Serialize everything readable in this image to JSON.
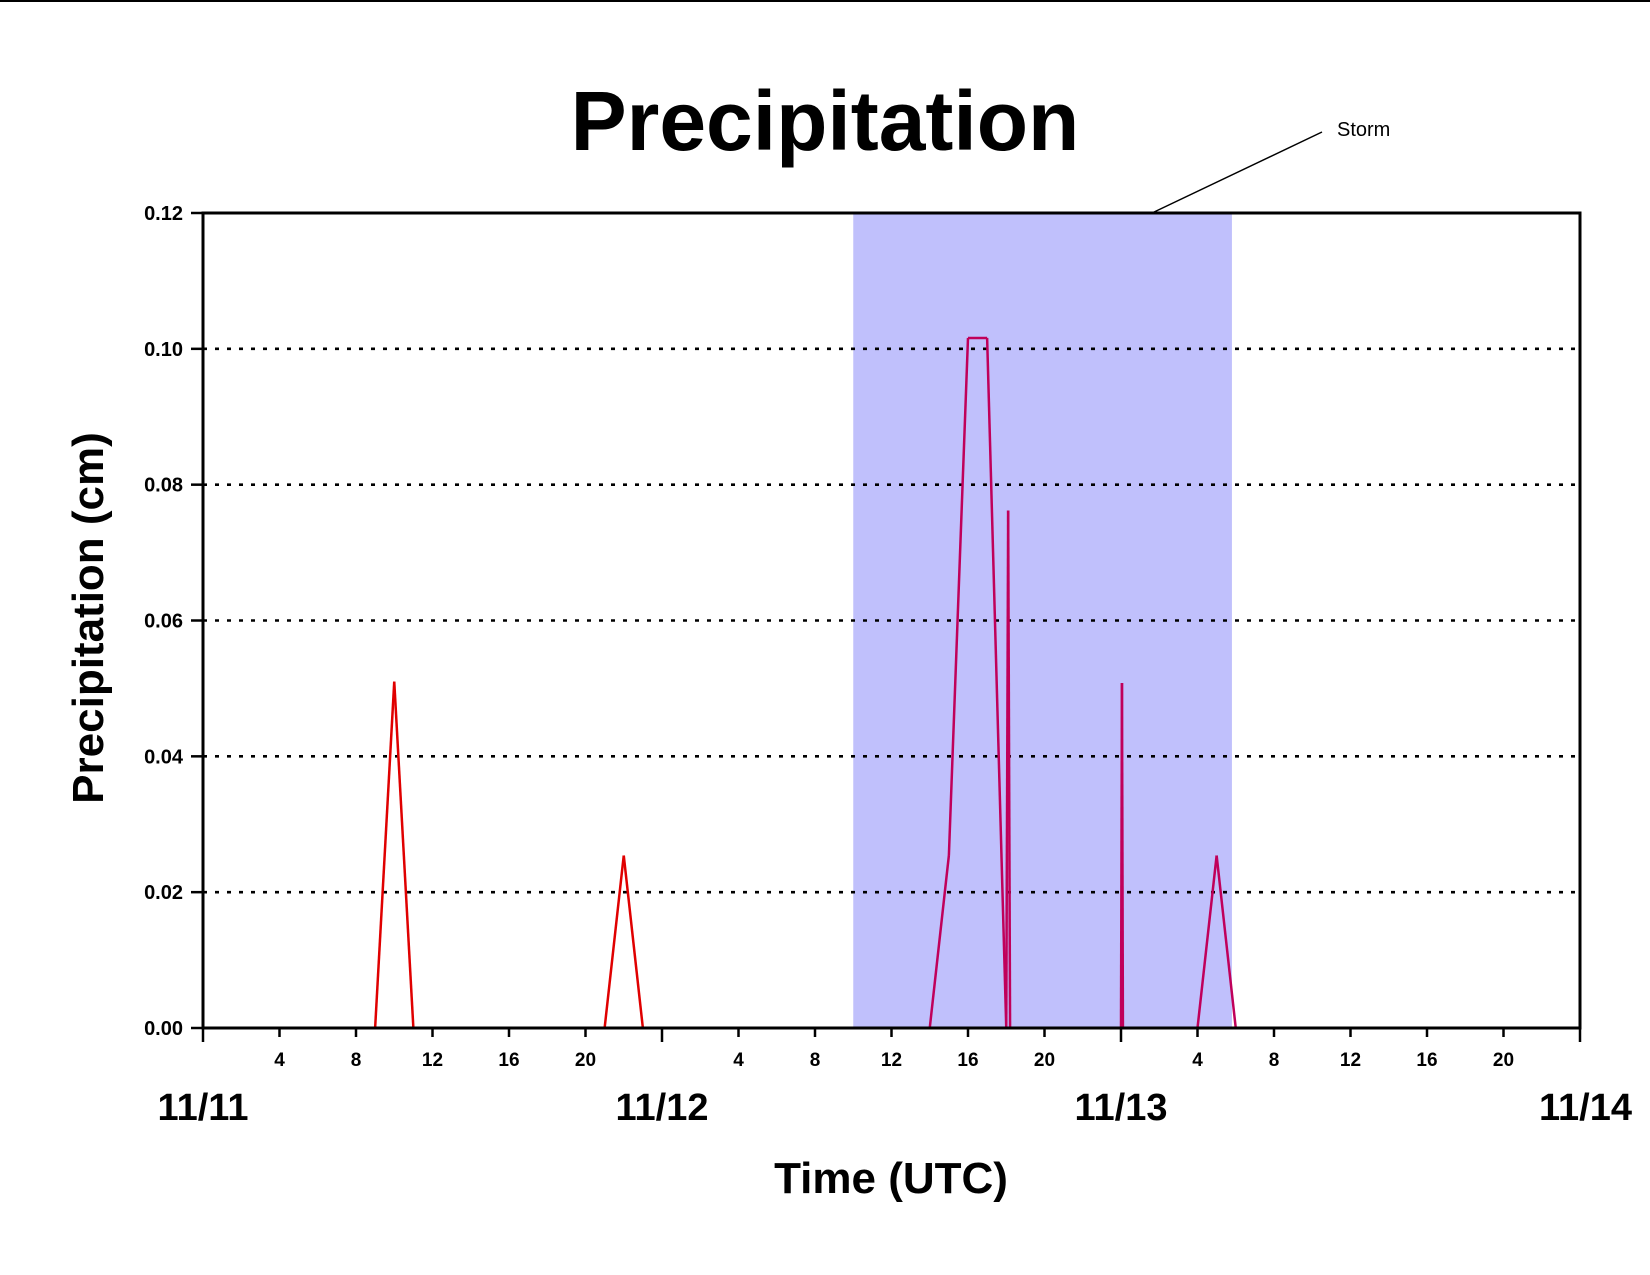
{
  "chart_data": {
    "type": "line",
    "title": "Precipitation",
    "xlabel": "Time (UTC)",
    "ylabel": "Precipitation (cm)",
    "ylim": [
      0,
      0.12
    ],
    "yticks": [
      "0.00",
      "0.02",
      "0.04",
      "0.06",
      "0.08",
      "0.10",
      "0.12"
    ],
    "xlim_hours": [
      0,
      72
    ],
    "date_labels": [
      {
        "label": "11/11",
        "hour": 0
      },
      {
        "label": "11/12",
        "hour": 24
      },
      {
        "label": "11/13",
        "hour": 48
      },
      {
        "label": "11/14",
        "hour": 72
      }
    ],
    "hour_tick_labels": [
      "4",
      "8",
      "12",
      "16",
      "20"
    ],
    "grid": "horizontal-dotted",
    "line_color": "#e00000",
    "storm_line_color": "#c0005a",
    "shade_color": "#c0c0fc",
    "storm": {
      "label": "Storm",
      "start_hour": 34,
      "end_hour": 53.8
    },
    "series": [
      {
        "x": [
          0,
          9,
          10,
          11,
          21,
          22,
          23,
          38,
          39,
          40,
          41,
          42,
          42.1,
          42.2,
          42.3,
          48,
          48.05,
          48.1,
          52,
          53,
          54,
          72
        ],
        "y": [
          0,
          0,
          0.051,
          0,
          0,
          0.0254,
          0,
          0,
          0.0254,
          0.1016,
          0.1016,
          0,
          0.0762,
          0,
          0,
          0,
          0.0508,
          0,
          0,
          0.0254,
          0,
          0
        ]
      }
    ]
  }
}
